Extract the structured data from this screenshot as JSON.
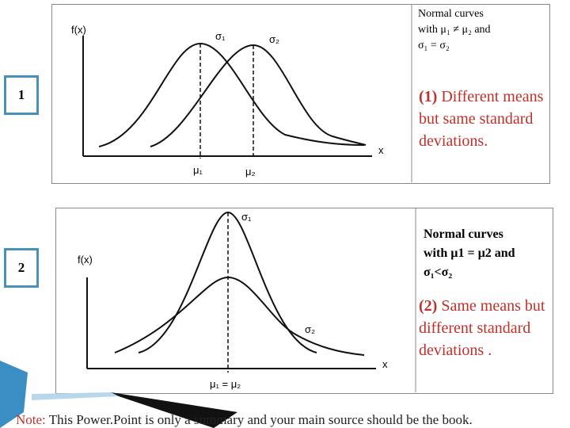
{
  "panels": [
    {
      "badge": "1",
      "y_label": "f(x)",
      "x_label": "x",
      "curve_labels": [
        "σ₁",
        "σ₂"
      ],
      "mean_labels": [
        "μ₁",
        "μ₂"
      ],
      "box_text": [
        "Normal curves",
        "with μ₁ ≠ μ₂ and",
        "σ₁ = σ₂"
      ],
      "caption_marker": "(1)",
      "caption_text": "Different means but same standard deviations."
    },
    {
      "badge": "2",
      "y_label": "f(x)",
      "x_label": "x",
      "curve_labels": [
        "σ₁",
        "σ₂"
      ],
      "mean_labels": [
        "μ₁ = μ₂"
      ],
      "box_text": [
        "Normal curves",
        "with µ1 = µ2 and",
        "σ₁<σ₂"
      ],
      "caption_marker": "(2)",
      "caption_text": "Same means but different standard deviations ."
    }
  ],
  "footer": {
    "note": "Note:",
    "text": "This Power.Point is only a summary and your main source should be the book."
  }
}
